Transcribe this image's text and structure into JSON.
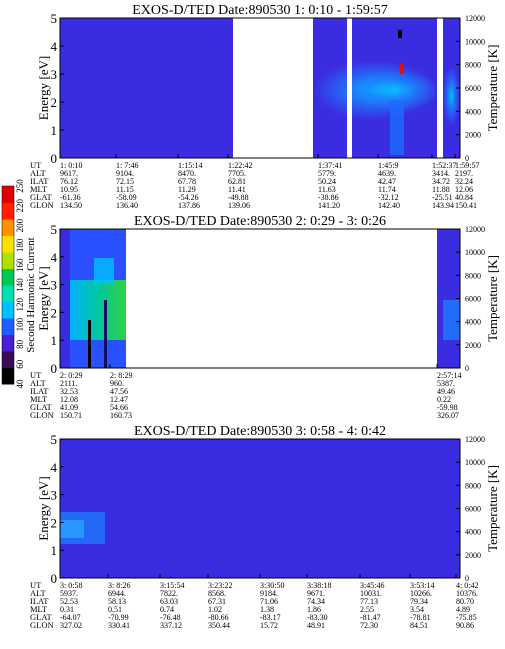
{
  "chart_data": [
    {
      "type": "heatmap",
      "title": "EXOS-D/TED   Date:890530   1: 0:10 - 1:59:57",
      "ylabel": "Energy [eV]",
      "y2label": "Temperature [K]",
      "ylim": [
        0,
        5
      ],
      "y2lim": [
        0,
        12000
      ],
      "yticks": [
        "0",
        "1",
        "2",
        "3",
        "4",
        "5"
      ],
      "y2ticks": [
        "0",
        "2000",
        "4000",
        "6000",
        "8000",
        "10000",
        "12000"
      ],
      "data_gaps": [
        [
          "1:22:42",
          "1:37:41"
        ],
        [
          "1:47:30",
          "1:48:20"
        ],
        [
          "1:58:40",
          "1:59:20"
        ]
      ],
      "rows": [
        {
          "label": "UT",
          "values": [
            "1: 0:10",
            "1: 7:46",
            "1:15:14",
            "1:22:42",
            "1:37:41",
            "1:45:9",
            "1:52:37",
            "1:59:57"
          ]
        },
        {
          "label": "ALT",
          "values": [
            "9617.",
            "9104.",
            "8470.",
            "7705.",
            "5779.",
            "4639.",
            "3414.",
            "2197."
          ]
        },
        {
          "label": "ILAT",
          "values": [
            "76.12",
            "72.15",
            "67.78",
            "62.81",
            "50.24",
            "42.47",
            "34.72",
            "32.24"
          ]
        },
        {
          "label": "MLT",
          "values": [
            "10.95",
            "11.15",
            "11.29",
            "11.41",
            "11.63",
            "11.74",
            "11.88",
            "12.06"
          ]
        },
        {
          "label": "GLAT",
          "values": [
            "-61.36",
            "-58.09",
            "-54.26",
            "-49.88",
            "-38.86",
            "-32.12",
            "-25.51",
            "40.84"
          ]
        },
        {
          "label": "GLON",
          "values": [
            "134.50",
            "136.40",
            "137.86",
            "139.06",
            "141.20",
            "142.40",
            "143.94",
            "150.41"
          ]
        }
      ]
    },
    {
      "type": "heatmap",
      "title": "EXOS-D/TED   Date:890530   2: 0:29 - 3: 0:26",
      "ylabel": "Energy [eV]",
      "y2label": "Temperature [K]",
      "ylim": [
        0,
        5
      ],
      "y2lim": [
        0,
        12000
      ],
      "yticks": [
        "0",
        "1",
        "2",
        "3",
        "4",
        "5"
      ],
      "y2ticks": [
        "0",
        "2000",
        "4000",
        "6000",
        "8000",
        "10000",
        "12000"
      ],
      "colorbar": {
        "label": "Second Harmonic Current",
        "ticks": [
          "40",
          "60",
          "80",
          "100",
          "120",
          "140",
          "160",
          "180",
          "200",
          "220",
          "250"
        ]
      },
      "data_gaps": [
        [
          "2: 8:29",
          "2:57:14"
        ]
      ],
      "rows": [
        {
          "label": "UT",
          "values": [
            "2: 0:29",
            "2: 8:29",
            "2:57:14"
          ]
        },
        {
          "label": "ALT",
          "values": [
            "2111.",
            "960.",
            "5387."
          ]
        },
        {
          "label": "ILAT",
          "values": [
            "32.53",
            "47.56",
            "49.46"
          ]
        },
        {
          "label": "MLT",
          "values": [
            "12.08",
            "12.47",
            "0.22"
          ]
        },
        {
          "label": "GLAT",
          "values": [
            "41.09",
            "54.66",
            "-59.98"
          ]
        },
        {
          "label": "GLON",
          "values": [
            "150.71",
            "160.73",
            "326.07"
          ]
        }
      ]
    },
    {
      "type": "heatmap",
      "title": "EXOS-D/TED   Date:890530   3: 0:58 - 4: 0:42",
      "ylabel": "Energy [eV]",
      "y2label": "Temperature [K]",
      "ylim": [
        0,
        5
      ],
      "y2lim": [
        0,
        12000
      ],
      "yticks": [
        "0",
        "1",
        "2",
        "3",
        "4",
        "5"
      ],
      "y2ticks": [
        "0",
        "2000",
        "4000",
        "6000",
        "8000",
        "10000",
        "12000"
      ],
      "rows": [
        {
          "label": "UT",
          "values": [
            "3: 0:58",
            "3: 8:26",
            "3:15:54",
            "3:23:22",
            "3:30:50",
            "3:38:18",
            "3:45:46",
            "3:53:14",
            "4: 0:42"
          ]
        },
        {
          "label": "ALT",
          "values": [
            "5937.",
            "6944.",
            "7822.",
            "8568.",
            "9184.",
            "9671.",
            "10031.",
            "10266.",
            "10376."
          ]
        },
        {
          "label": "ILAT",
          "values": [
            "52.53",
            "58.13",
            "63.03",
            "67.31",
            "71.06",
            "74.34",
            "77.13",
            "79.34",
            "80.70"
          ]
        },
        {
          "label": "MLT",
          "values": [
            "0.31",
            "0.51",
            "0.74",
            "1.02",
            "1.38",
            "1.86",
            "2.55",
            "3.54",
            "4.89"
          ]
        },
        {
          "label": "GLAT",
          "values": [
            "-64.07",
            "-70.99",
            "-76.48",
            "-80.66",
            "-83.17",
            "-83.30",
            "-81.47",
            "-78.81",
            "-75.85"
          ]
        },
        {
          "label": "GLON",
          "values": [
            "327.02",
            "330.41",
            "337.12",
            "350.44",
            "15.72",
            "48.91",
            "72.30",
            "84.51",
            "90.86"
          ]
        }
      ]
    }
  ],
  "colors": {
    "background_spectrum": "#3a2ce0",
    "gap": "#ffffff",
    "colorbar": [
      "#000000",
      "#3b0a55",
      "#4a1fd6",
      "#1e5cff",
      "#00c0ff",
      "#00e0b0",
      "#00c850",
      "#b0e000",
      "#ffe000",
      "#ff9000",
      "#ff2000",
      "#e00000"
    ]
  }
}
